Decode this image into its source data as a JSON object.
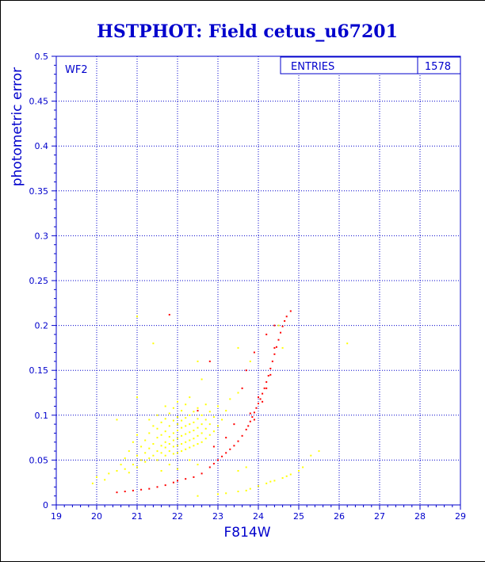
{
  "chart_data": {
    "type": "scatter",
    "title": "HSTPHOT: Field cetus_u67201",
    "xlabel": "F814W",
    "ylabel": "photometric error",
    "panel_label": "WF2",
    "stats": {
      "label": "ENTRIES",
      "value": "1578"
    },
    "xlim": [
      19,
      29
    ],
    "ylim": [
      0,
      0.5
    ],
    "grid": true,
    "x_ticks": [
      "19",
      "20",
      "21",
      "22",
      "23",
      "24",
      "25",
      "26",
      "27",
      "28",
      "29"
    ],
    "y_ticks": [
      "0",
      "0.05",
      "0.1",
      "0.15",
      "0.2",
      "0.25",
      "0.3",
      "0.35",
      "0.4",
      "0.45",
      "0.5"
    ],
    "colors": {
      "axis": "#0000cc",
      "grid": "#0000cc",
      "title": "#0000cc",
      "yellow": "#ffff00",
      "red": "#ff0000"
    },
    "series": [
      {
        "color": "yellow",
        "points": [
          [
            19.9,
            0.024
          ],
          [
            20.0,
            0.031
          ],
          [
            20.2,
            0.028
          ],
          [
            20.3,
            0.035
          ],
          [
            20.5,
            0.038
          ],
          [
            20.6,
            0.045
          ],
          [
            20.7,
            0.04
          ],
          [
            20.7,
            0.052
          ],
          [
            20.8,
            0.036
          ],
          [
            20.8,
            0.06
          ],
          [
            20.9,
            0.045
          ],
          [
            20.9,
            0.07
          ],
          [
            21.0,
            0.042
          ],
          [
            21.0,
            0.055
          ],
          [
            21.0,
            0.078
          ],
          [
            21.1,
            0.05
          ],
          [
            21.1,
            0.065
          ],
          [
            21.2,
            0.048
          ],
          [
            21.2,
            0.058
          ],
          [
            21.2,
            0.072
          ],
          [
            21.3,
            0.052
          ],
          [
            21.3,
            0.063
          ],
          [
            21.3,
            0.08
          ],
          [
            21.3,
            0.095
          ],
          [
            21.4,
            0.055
          ],
          [
            21.4,
            0.068
          ],
          [
            21.4,
            0.088
          ],
          [
            21.5,
            0.05
          ],
          [
            21.5,
            0.06
          ],
          [
            21.5,
            0.075
          ],
          [
            21.5,
            0.085
          ],
          [
            21.5,
            0.1
          ],
          [
            21.6,
            0.058
          ],
          [
            21.6,
            0.066
          ],
          [
            21.6,
            0.078
          ],
          [
            21.6,
            0.092
          ],
          [
            21.7,
            0.055
          ],
          [
            21.7,
            0.064
          ],
          [
            21.7,
            0.07
          ],
          [
            21.7,
            0.082
          ],
          [
            21.7,
            0.096
          ],
          [
            21.7,
            0.11
          ],
          [
            21.8,
            0.06
          ],
          [
            21.8,
            0.068
          ],
          [
            21.8,
            0.076
          ],
          [
            21.8,
            0.088
          ],
          [
            21.8,
            0.102
          ],
          [
            21.9,
            0.057
          ],
          [
            21.9,
            0.065
          ],
          [
            21.9,
            0.072
          ],
          [
            21.9,
            0.08
          ],
          [
            21.9,
            0.094
          ],
          [
            21.9,
            0.108
          ],
          [
            22.0,
            0.058
          ],
          [
            22.0,
            0.066
          ],
          [
            22.0,
            0.074
          ],
          [
            22.0,
            0.083
          ],
          [
            22.0,
            0.09
          ],
          [
            22.0,
            0.098
          ],
          [
            22.0,
            0.115
          ],
          [
            22.1,
            0.06
          ],
          [
            22.1,
            0.068
          ],
          [
            22.1,
            0.077
          ],
          [
            22.1,
            0.086
          ],
          [
            22.1,
            0.094
          ],
          [
            22.1,
            0.105
          ],
          [
            22.2,
            0.062
          ],
          [
            22.2,
            0.07
          ],
          [
            22.2,
            0.079
          ],
          [
            22.2,
            0.088
          ],
          [
            22.2,
            0.097
          ],
          [
            22.2,
            0.112
          ],
          [
            22.3,
            0.064
          ],
          [
            22.3,
            0.072
          ],
          [
            22.3,
            0.081
          ],
          [
            22.3,
            0.09
          ],
          [
            22.3,
            0.1
          ],
          [
            22.3,
            0.12
          ],
          [
            22.4,
            0.066
          ],
          [
            22.4,
            0.074
          ],
          [
            22.4,
            0.083
          ],
          [
            22.4,
            0.092
          ],
          [
            22.4,
            0.104
          ],
          [
            22.5,
            0.068
          ],
          [
            22.5,
            0.077
          ],
          [
            22.5,
            0.086
          ],
          [
            22.5,
            0.096
          ],
          [
            22.5,
            0.108
          ],
          [
            22.6,
            0.07
          ],
          [
            22.6,
            0.08
          ],
          [
            22.6,
            0.09
          ],
          [
            22.6,
            0.1
          ],
          [
            22.7,
            0.074
          ],
          [
            22.7,
            0.085
          ],
          [
            22.7,
            0.095
          ],
          [
            22.7,
            0.112
          ],
          [
            22.8,
            0.078
          ],
          [
            22.8,
            0.09
          ],
          [
            22.8,
            0.104
          ],
          [
            22.9,
            0.082
          ],
          [
            22.9,
            0.098
          ],
          [
            23.0,
            0.088
          ],
          [
            23.0,
            0.11
          ],
          [
            23.1,
            0.095
          ],
          [
            23.2,
            0.105
          ],
          [
            23.3,
            0.118
          ],
          [
            23.5,
            0.125
          ],
          [
            23.8,
            0.16
          ],
          [
            22.5,
            0.16
          ],
          [
            21.4,
            0.18
          ],
          [
            22.6,
            0.14
          ],
          [
            20.5,
            0.095
          ],
          [
            21.0,
            0.12
          ],
          [
            23.5,
            0.175
          ],
          [
            25.5,
            0.06
          ],
          [
            25.3,
            0.055
          ],
          [
            26.2,
            0.18
          ],
          [
            24.5,
            0.2
          ],
          [
            24.6,
            0.175
          ],
          [
            21.0,
            0.21
          ],
          [
            21.6,
            0.038
          ],
          [
            21.8,
            0.045
          ],
          [
            22.0,
            0.04
          ],
          [
            22.3,
            0.05
          ],
          [
            22.5,
            0.045
          ],
          [
            23.5,
            0.038
          ],
          [
            23.7,
            0.042
          ],
          [
            22.5,
            0.01
          ],
          [
            23.0,
            0.012
          ],
          [
            23.5,
            0.015
          ],
          [
            23.8,
            0.018
          ],
          [
            24.0,
            0.021
          ],
          [
            24.2,
            0.024
          ],
          [
            24.4,
            0.027
          ],
          [
            24.6,
            0.03
          ],
          [
            24.8,
            0.034
          ],
          [
            25.0,
            0.038
          ],
          [
            25.1,
            0.042
          ],
          [
            23.2,
            0.013
          ],
          [
            23.7,
            0.016
          ],
          [
            24.3,
            0.026
          ],
          [
            24.7,
            0.032
          ]
        ]
      },
      {
        "color": "red",
        "points": [
          [
            20.5,
            0.014
          ],
          [
            20.7,
            0.015
          ],
          [
            20.9,
            0.016
          ],
          [
            21.1,
            0.017
          ],
          [
            21.3,
            0.018
          ],
          [
            21.5,
            0.02
          ],
          [
            21.7,
            0.022
          ],
          [
            21.9,
            0.025
          ],
          [
            22.0,
            0.027
          ],
          [
            22.2,
            0.029
          ],
          [
            22.4,
            0.031
          ],
          [
            22.6,
            0.035
          ],
          [
            22.8,
            0.042
          ],
          [
            22.9,
            0.046
          ],
          [
            23.0,
            0.05
          ],
          [
            23.1,
            0.054
          ],
          [
            23.2,
            0.058
          ],
          [
            23.3,
            0.062
          ],
          [
            23.4,
            0.066
          ],
          [
            23.5,
            0.071
          ],
          [
            23.6,
            0.077
          ],
          [
            23.7,
            0.084
          ],
          [
            23.75,
            0.088
          ],
          [
            23.8,
            0.093
          ],
          [
            23.85,
            0.098
          ],
          [
            23.9,
            0.103
          ],
          [
            23.95,
            0.108
          ],
          [
            24.0,
            0.113
          ],
          [
            24.05,
            0.118
          ],
          [
            24.1,
            0.124
          ],
          [
            24.15,
            0.13
          ],
          [
            24.2,
            0.137
          ],
          [
            24.25,
            0.144
          ],
          [
            24.3,
            0.152
          ],
          [
            24.35,
            0.16
          ],
          [
            24.4,
            0.168
          ],
          [
            24.45,
            0.176
          ],
          [
            24.5,
            0.184
          ],
          [
            24.55,
            0.192
          ],
          [
            24.6,
            0.199
          ],
          [
            24.65,
            0.205
          ],
          [
            24.7,
            0.21
          ],
          [
            24.8,
            0.216
          ],
          [
            23.8,
            0.102
          ],
          [
            23.9,
            0.095
          ],
          [
            24.0,
            0.12
          ],
          [
            24.1,
            0.115
          ],
          [
            24.2,
            0.13
          ],
          [
            24.3,
            0.145
          ],
          [
            24.4,
            0.175
          ],
          [
            23.6,
            0.13
          ],
          [
            23.7,
            0.15
          ],
          [
            23.9,
            0.17
          ],
          [
            24.2,
            0.19
          ],
          [
            24.4,
            0.2
          ],
          [
            23.4,
            0.09
          ],
          [
            23.2,
            0.075
          ],
          [
            22.9,
            0.065
          ],
          [
            22.5,
            0.105
          ],
          [
            21.8,
            0.212
          ],
          [
            22.8,
            0.16
          ]
        ]
      }
    ]
  }
}
